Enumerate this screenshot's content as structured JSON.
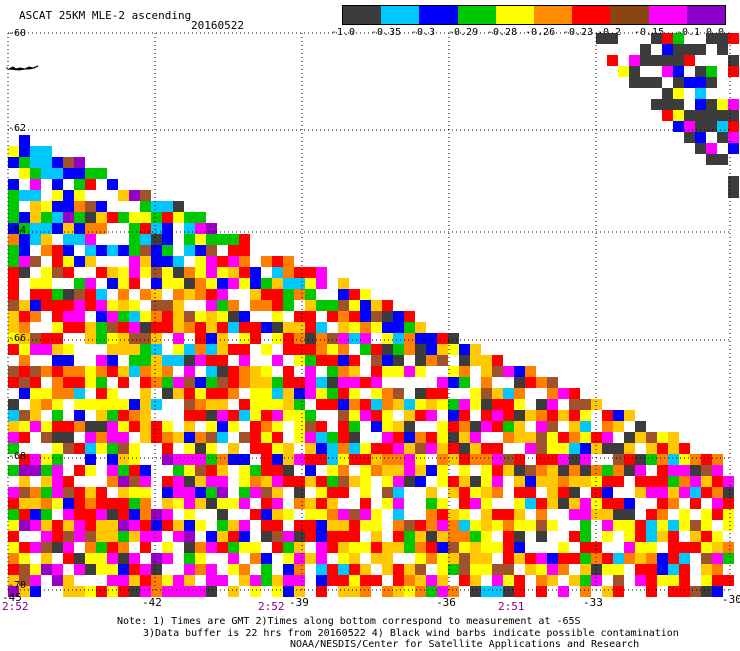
{
  "header": {
    "title": "ASCAT 25KM MLE-2 ascending",
    "date": "20160522"
  },
  "colorbar": {
    "labels": [
      "-1.0",
      "-0.35",
      "-0.3",
      "-0.29",
      "-0.28",
      "-0.26",
      "-0.23",
      "-0.2",
      "-0.15",
      "-0.1",
      "0.0"
    ],
    "colors": [
      "#3c3c3c",
      "#00c8ff",
      "#0000ff",
      "#00c800",
      "#ffff00",
      "#ffc800",
      "#ff8000",
      "#ff0000",
      "#a0522d",
      "#ff00ff",
      "#9600c8"
    ]
  },
  "axes": {
    "lat_labels": [
      "-60",
      "-62",
      "-64",
      "-66",
      "-68",
      "-70"
    ],
    "lon_labels": [
      "-45",
      "-42",
      "-39",
      "-36",
      "-33",
      "-30"
    ],
    "time_labels": [
      "2:52",
      "2:52",
      "2:51"
    ]
  },
  "notes": {
    "line1": "Note: 1) Times are GMT 2)Times along bottom correspond to measurement at -65S",
    "line2": "3)Data buffer is 22 hrs from 20160522 4) Black wind barbs indicate possible contamination",
    "line3": "NOAA/NESDIS/Center for Satellite Applications and Research"
  },
  "map_data": {
    "lat_range": [
      -70,
      -60
    ],
    "lon_range": [
      -45,
      -30
    ],
    "grid_spacing_deg": [
      3,
      2
    ],
    "grid": "dotted"
  }
}
